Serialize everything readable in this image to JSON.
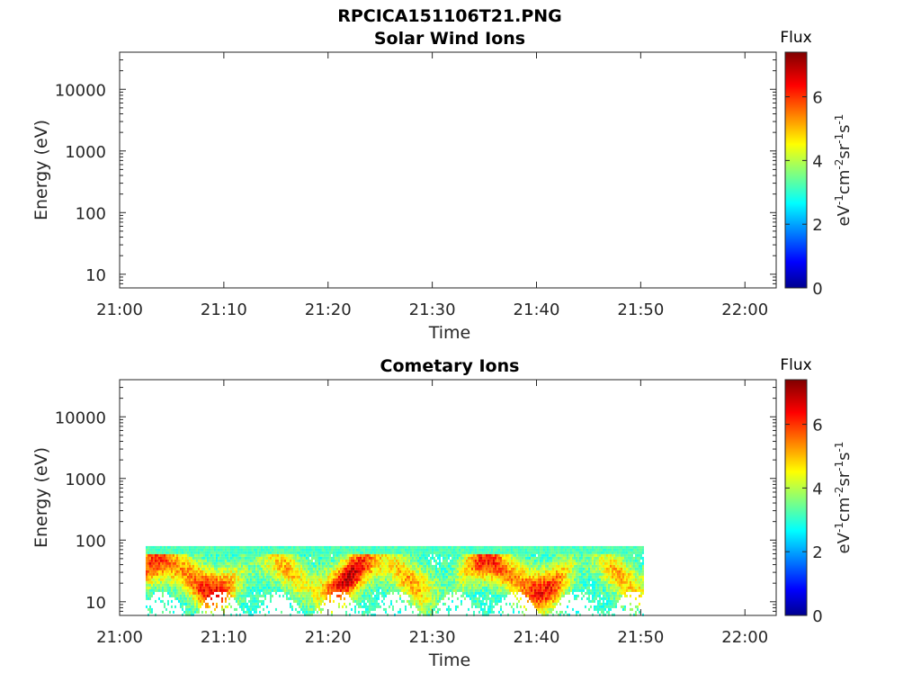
{
  "figure_title": "RPCICA151106T21.PNG",
  "chart_data": [
    {
      "type": "heatmap",
      "title": "Solar Wind Ions",
      "xlabel": "Time",
      "ylabel": "Energy (eV)",
      "x_ticks": [
        "21:00",
        "21:10",
        "21:20",
        "21:30",
        "21:40",
        "21:50",
        "22:00"
      ],
      "xlim": [
        "21:00",
        "22:03"
      ],
      "y_scale": "log",
      "y_ticks": [
        "10",
        "100",
        "1000",
        "10000"
      ],
      "ylim": [
        6,
        40000
      ],
      "colorbar": {
        "title": "Flux",
        "label": "eV-1cm-2sr-1s-1",
        "ticks": [
          "0",
          "2",
          "4",
          "6"
        ],
        "range": [
          0,
          7.4
        ],
        "colormap": "jet"
      },
      "data": []
    },
    {
      "type": "heatmap",
      "title": "Cometary Ions",
      "xlabel": "Time",
      "ylabel": "Energy (eV)",
      "x_ticks": [
        "21:00",
        "21:10",
        "21:20",
        "21:30",
        "21:40",
        "21:50",
        "22:00"
      ],
      "xlim": [
        "21:00",
        "22:03"
      ],
      "y_scale": "log",
      "y_ticks": [
        "10",
        "100",
        "1000",
        "10000"
      ],
      "ylim": [
        6,
        40000
      ],
      "colorbar": {
        "title": "Flux",
        "label": "eV-1cm-2sr-1s-1",
        "ticks": [
          "0",
          "2",
          "4",
          "6"
        ],
        "range": [
          0,
          7.4
        ],
        "colormap": "jet"
      },
      "data": {
        "time_start": "21:02:30",
        "time_end": "21:50:15",
        "energy_range_eV": [
          6,
          80
        ],
        "peak_energy_eV": [
          15,
          50
        ],
        "flux_range": [
          3,
          7
        ]
      }
    }
  ]
}
